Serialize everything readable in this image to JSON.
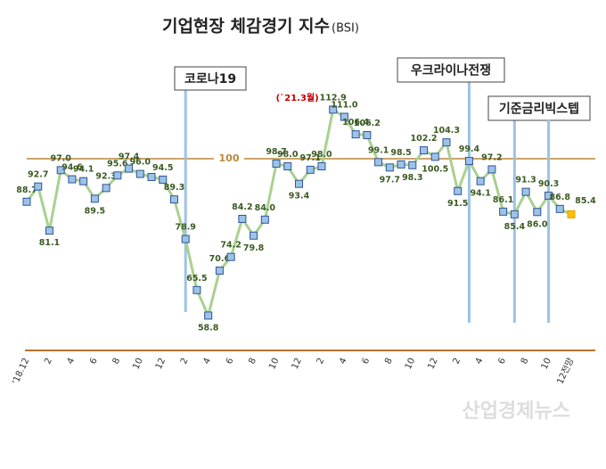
{
  "chart_data": {
    "type": "line",
    "title": "기업현장 체감경기 지수",
    "title_suffix": "(BSI)",
    "categories": [
      "'18.12",
      null,
      "2",
      null,
      "4",
      null,
      "6",
      null,
      "8",
      null,
      "10",
      null,
      "12",
      null,
      "2",
      null,
      "4",
      null,
      "6",
      null,
      "8",
      null,
      "10",
      null,
      "12",
      null,
      "2",
      null,
      "4",
      null,
      "6",
      null,
      "8",
      null,
      "10",
      null,
      "12",
      null,
      "2",
      null,
      "4",
      null,
      "6",
      null,
      "8",
      null,
      "10",
      null,
      "12전망"
    ],
    "series": [
      {
        "name": "BSI",
        "color": "#a9d18e",
        "marker_color": "#9dc3e6",
        "highlight_color": "#ffc000",
        "values": [
          88.7,
          92.7,
          81.1,
          97.0,
          94.6,
          94.1,
          89.5,
          92.3,
          95.6,
          97.4,
          96.0,
          95.2,
          94.5,
          89.3,
          78.9,
          65.5,
          58.8,
          70.6,
          74.2,
          84.2,
          79.8,
          84.0,
          98.7,
          98.0,
          93.4,
          97.1,
          98.0,
          112.9,
          111.0,
          106.4,
          106.2,
          99.1,
          97.7,
          98.5,
          98.3,
          102.2,
          100.5,
          104.3,
          91.5,
          99.4,
          94.1,
          97.2,
          86.1,
          85.4,
          91.3,
          86.0,
          90.3,
          86.8,
          85.4
        ],
        "value_labels": [
          "88.7",
          "92.7",
          "81.1",
          "97.0",
          "94.6",
          "94.1",
          "89.5",
          "92.3",
          "95.6",
          "97.4",
          "96.0",
          null,
          "94.5",
          "89.3",
          "78.9",
          "65.5",
          "58.8",
          "70.6",
          "74.2",
          "84.2",
          "79.8",
          "84.0",
          "98.7",
          "98.0",
          "93.4",
          "97.1",
          "98.0",
          "112.9",
          "111.0",
          "106.4",
          "106.2",
          "99.1",
          "97.7",
          "98.5",
          "98.3",
          "102.2",
          "100.5",
          "104.3",
          "91.5",
          "99.4",
          "94.1",
          "97.2",
          "86.1",
          "85.4",
          "91.3",
          "86.0",
          "90.3",
          "86.8",
          "85.4"
        ]
      }
    ],
    "ylim": [
      50,
      120
    ],
    "reference_line": {
      "value": 100,
      "color": "#b8863b"
    },
    "peak_note": {
      "text": "(`21.3월)",
      "index": 27
    },
    "events": [
      {
        "label": "코로나19",
        "index": 14
      },
      {
        "label": "우크라이나전쟁",
        "index": 39
      },
      {
        "label": "기준금리빅스텝",
        "index": 43
      },
      {
        "index": 46
      }
    ],
    "watermark": "산업경제뉴스"
  }
}
